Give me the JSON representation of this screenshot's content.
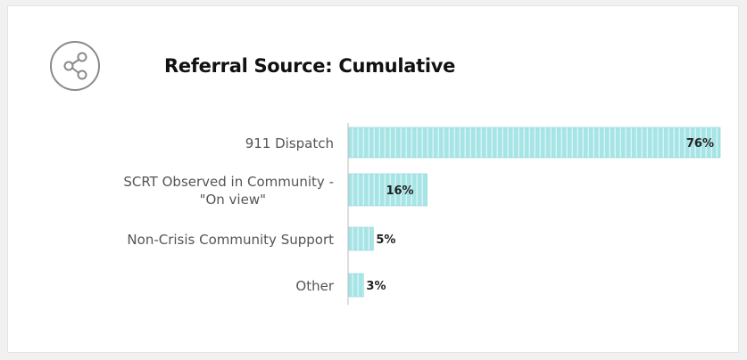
{
  "title": "Referral Source: Cumulative",
  "icon": "share-icon",
  "colors": {
    "bar_fill": "#a6e4e6",
    "bar_stripe": "#ffffff",
    "bar_outline": "#8fd6d8",
    "label_text": "#555555",
    "value_text": "#222222",
    "axis_line": "#bbbbbb",
    "icon_stroke": "#808080"
  },
  "chart_data": {
    "type": "bar",
    "orientation": "horizontal",
    "title": "Referral Source: Cumulative",
    "categories": [
      [
        "911 Dispatch"
      ],
      [
        "SCRT Observed in Community -",
        "\"On view\""
      ],
      [
        "Non-Crisis Community Support"
      ],
      [
        "Other"
      ]
    ],
    "values": [
      76,
      16,
      5,
      3
    ],
    "value_labels": [
      "76%",
      "16%",
      "5%",
      "3%"
    ],
    "unit": "%",
    "xlim": [
      0,
      76
    ],
    "grid": false,
    "legend": "none"
  }
}
